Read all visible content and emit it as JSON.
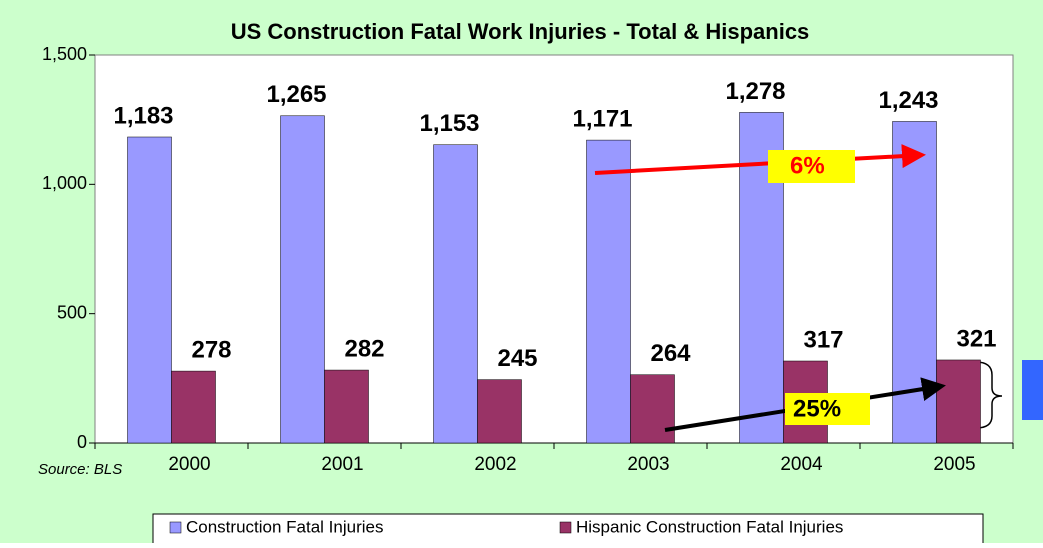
{
  "chart_data": {
    "type": "bar",
    "title": "US Construction Fatal Work Injuries - Total & Hispanics",
    "categories": [
      "2000",
      "2001",
      "2002",
      "2003",
      "2004",
      "2005"
    ],
    "series": [
      {
        "name": "Construction Fatal Injuries",
        "color": "#9999ff",
        "values": [
          1183,
          1265,
          1153,
          1171,
          1278,
          1243
        ],
        "value_labels": [
          "1,183",
          "1,265",
          "1,153",
          "1,171",
          "1,278",
          "1,243"
        ]
      },
      {
        "name": "Hispanic Construction Fatal Injuries",
        "color": "#993366",
        "values": [
          278,
          282,
          245,
          264,
          317,
          321
        ]
      }
    ],
    "ylim": [
      0,
      1500
    ],
    "yticks": [
      0,
      500,
      {
        "value": 1000,
        "label": "1,000"
      },
      {
        "value": 1500,
        "label": "1,500"
      }
    ],
    "annotations": [
      "6%",
      "25%"
    ],
    "source": "Source: BLS",
    "legend": "bottom"
  }
}
